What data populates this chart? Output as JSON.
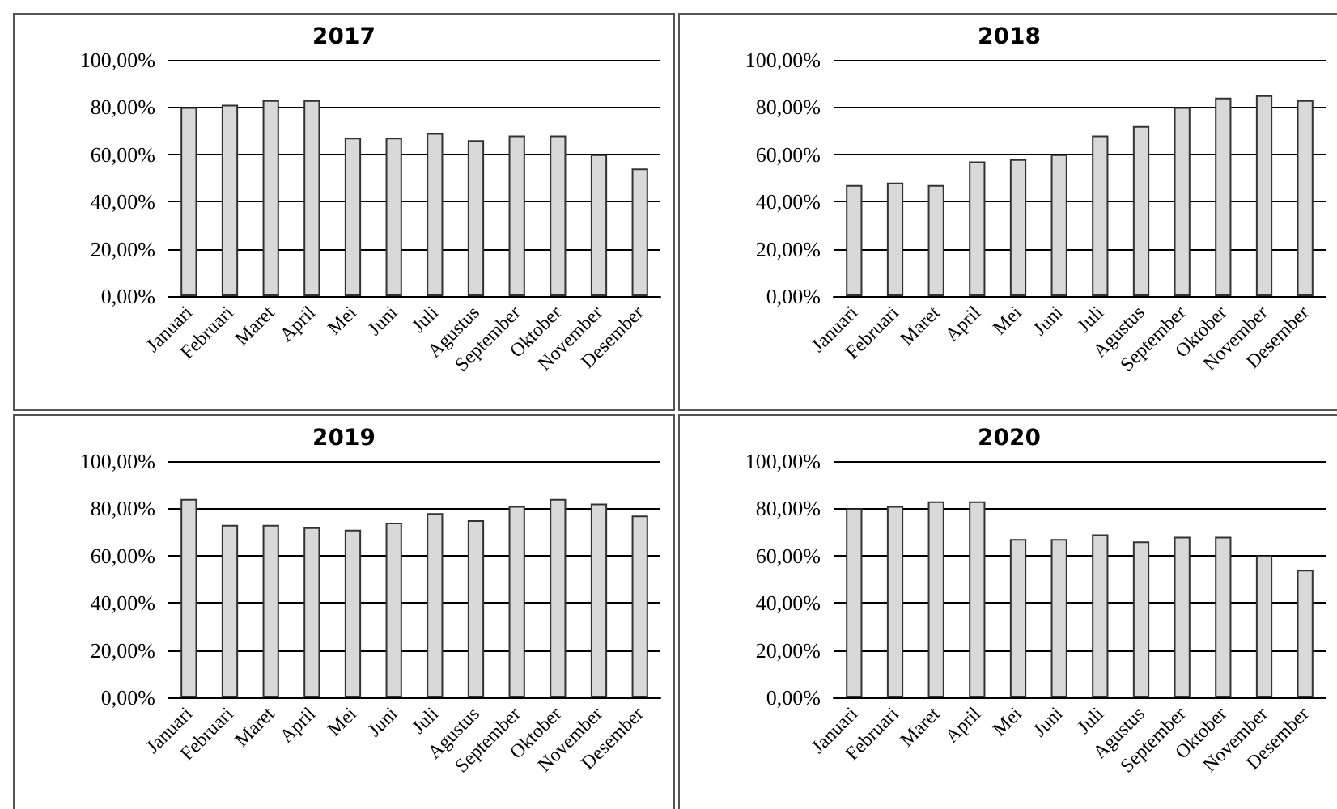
{
  "chart_data": [
    {
      "type": "bar",
      "title": "2017",
      "categories": [
        "Januari",
        "Februari",
        "Maret",
        "April",
        "Mei",
        "Juni",
        "Juli",
        "Agustus",
        "September",
        "Oktober",
        "November",
        "Desember"
      ],
      "values": [
        80,
        81,
        83,
        83,
        67,
        67,
        69,
        66,
        68,
        68,
        60,
        54
      ],
      "color": "#d9d9d9",
      "ylim": [
        0,
        100
      ],
      "yticks": [
        {
          "value": 0,
          "label": "0,00%"
        },
        {
          "value": 20,
          "label": "20,00%"
        },
        {
          "value": 40,
          "label": "40,00%"
        },
        {
          "value": 60,
          "label": "60,00%"
        },
        {
          "value": 80,
          "label": "80,00%"
        },
        {
          "value": 100,
          "label": "100,00%"
        }
      ],
      "grid": "y"
    },
    {
      "type": "bar",
      "title": "2018",
      "categories": [
        "Januari",
        "Februari",
        "Maret",
        "April",
        "Mei",
        "Juni",
        "Juli",
        "Agustus",
        "September",
        "Oktober",
        "November",
        "Desember"
      ],
      "values": [
        47,
        48,
        47,
        57,
        58,
        60,
        68,
        72,
        80,
        84,
        85,
        83
      ],
      "color": "#d9d9d9",
      "ylim": [
        0,
        100
      ],
      "yticks": [
        {
          "value": 0,
          "label": "0,00%"
        },
        {
          "value": 20,
          "label": "20,00%"
        },
        {
          "value": 40,
          "label": "40,00%"
        },
        {
          "value": 60,
          "label": "60,00%"
        },
        {
          "value": 80,
          "label": "80,00%"
        },
        {
          "value": 100,
          "label": "100,00%"
        }
      ],
      "grid": "y"
    },
    {
      "type": "bar",
      "title": "2019",
      "categories": [
        "Januari",
        "Februari",
        "Maret",
        "April",
        "Mei",
        "Juni",
        "Juli",
        "Agustus",
        "September",
        "Oktober",
        "November",
        "Desember"
      ],
      "values": [
        84,
        73,
        73,
        72,
        71,
        74,
        78,
        75,
        81,
        84,
        82,
        77
      ],
      "color": "#d9d9d9",
      "ylim": [
        0,
        100
      ],
      "yticks": [
        {
          "value": 0,
          "label": "0,00%"
        },
        {
          "value": 20,
          "label": "20,00%"
        },
        {
          "value": 40,
          "label": "40,00%"
        },
        {
          "value": 60,
          "label": "60,00%"
        },
        {
          "value": 80,
          "label": "80,00%"
        },
        {
          "value": 100,
          "label": "100,00%"
        }
      ],
      "grid": "y"
    },
    {
      "type": "bar",
      "title": "2020",
      "categories": [
        "Januari",
        "Februari",
        "Maret",
        "April",
        "Mei",
        "Juni",
        "Juli",
        "Agustus",
        "September",
        "Oktober",
        "November",
        "Desember"
      ],
      "values": [
        80,
        81,
        83,
        83,
        67,
        67,
        69,
        66,
        68,
        68,
        60,
        54
      ],
      "color": "#d9d9d9",
      "ylim": [
        0,
        100
      ],
      "yticks": [
        {
          "value": 0,
          "label": "0,00%"
        },
        {
          "value": 20,
          "label": "20,00%"
        },
        {
          "value": 40,
          "label": "40,00%"
        },
        {
          "value": 60,
          "label": "60,00%"
        },
        {
          "value": 80,
          "label": "80,00%"
        },
        {
          "value": 100,
          "label": "100,00%"
        }
      ],
      "grid": "y"
    }
  ]
}
